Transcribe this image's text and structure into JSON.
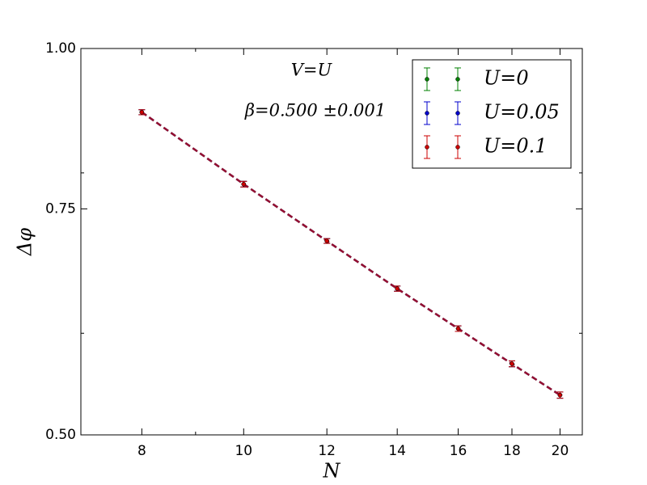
{
  "chart_data": {
    "type": "errorbar",
    "x_label": "N",
    "y_label": "Δφ",
    "annotations": [
      "V=U",
      "β=0.500 ±0.001"
    ],
    "xscale": "log",
    "yscale": "log",
    "xlim": [
      7,
      21
    ],
    "ylim": [
      0.5,
      1.0
    ],
    "xticks": [
      8,
      10,
      12,
      14,
      16,
      18,
      20
    ],
    "xminor": [
      9
    ],
    "yticks": [
      {
        "value": 0.5,
        "label": "0.50"
      },
      {
        "value": 0.75,
        "label": "0.75"
      },
      {
        "value": 1.0,
        "label": "1.00"
      }
    ],
    "yminor": [
      0.6,
      0.8
    ],
    "legend": "upper right",
    "x": [
      8,
      10,
      12,
      14,
      16,
      18,
      20
    ],
    "series": [
      {
        "name": "U=0",
        "color": "#008000",
        "values": [
          0.892,
          0.784,
          0.708,
          0.65,
          0.605,
          0.568,
          0.537
        ],
        "errors": [
          0.004,
          0.004,
          0.003,
          0.003,
          0.003,
          0.003,
          0.003
        ]
      },
      {
        "name": "U=0.05",
        "color": "#0000cc",
        "values": [
          0.892,
          0.784,
          0.708,
          0.65,
          0.605,
          0.568,
          0.537
        ],
        "errors": [
          0.004,
          0.004,
          0.003,
          0.003,
          0.003,
          0.003,
          0.003
        ]
      },
      {
        "name": "U=0.1",
        "color": "#cc0000",
        "values": [
          0.892,
          0.784,
          0.708,
          0.65,
          0.605,
          0.568,
          0.537
        ],
        "errors": [
          0.004,
          0.004,
          0.003,
          0.003,
          0.003,
          0.003,
          0.003
        ]
      }
    ]
  }
}
